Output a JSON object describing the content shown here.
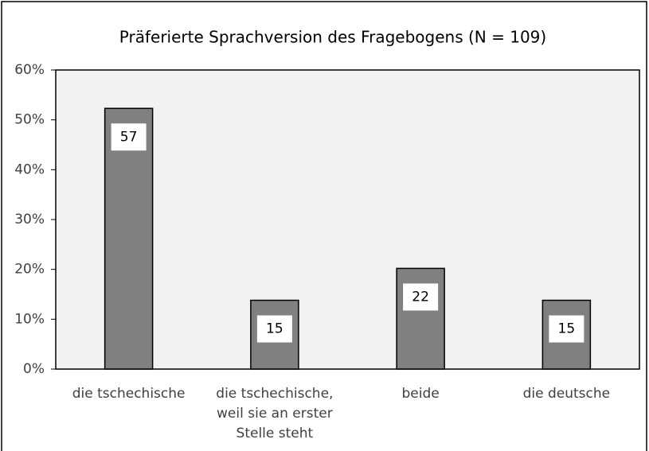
{
  "chart_data": {
    "type": "bar",
    "title": "Präferierte Sprachversion des Fragebogens (N = 109)",
    "categories": [
      "die tschechische",
      "die tschechische,\nweil sie an erster\nStelle steht",
      "beide",
      "die deutsche"
    ],
    "values": [
      52.3,
      13.8,
      20.2,
      13.8
    ],
    "counts": [
      57,
      15,
      22,
      15
    ],
    "color": "#808080",
    "ylim": [
      0,
      60
    ],
    "yticks": [
      {
        "value": 0,
        "label": "0%"
      },
      {
        "value": 10,
        "label": "10%"
      },
      {
        "value": 20,
        "label": "20%"
      },
      {
        "value": 30,
        "label": "30%"
      },
      {
        "value": 40,
        "label": "40%"
      },
      {
        "value": 50,
        "label": "50%"
      },
      {
        "value": 60,
        "label": "60%"
      }
    ],
    "grid": false
  }
}
